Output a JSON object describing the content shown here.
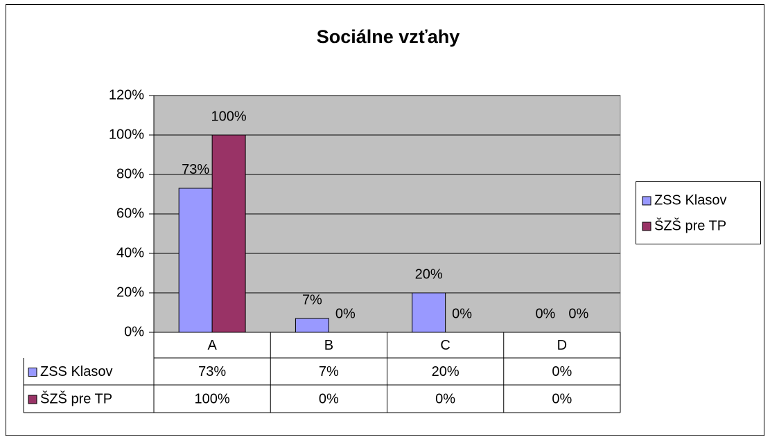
{
  "chart_data": {
    "type": "bar",
    "title": "Sociálne vzťahy",
    "categories": [
      "A",
      "B",
      "C",
      "D"
    ],
    "series": [
      {
        "name": "ZSS Klasov",
        "color": "#9999ff",
        "values": [
          73,
          7,
          20,
          0
        ],
        "value_labels": [
          "73%",
          "7%",
          "20%",
          "0%"
        ]
      },
      {
        "name": "ŠZŠ pre TP",
        "color": "#993366",
        "values": [
          100,
          0,
          0,
          0
        ],
        "value_labels": [
          "100%",
          "0%",
          "0%",
          "0%"
        ]
      }
    ],
    "ylim": [
      0,
      120
    ],
    "yticks": [
      {
        "value": 0,
        "label": "0%"
      },
      {
        "value": 20,
        "label": "20%"
      },
      {
        "value": 40,
        "label": "40%"
      },
      {
        "value": 60,
        "label": "60%"
      },
      {
        "value": 80,
        "label": "80%"
      },
      {
        "value": 100,
        "label": "100%"
      },
      {
        "value": 120,
        "label": "120%"
      }
    ],
    "grid": true,
    "legend": "right",
    "data_table": true
  }
}
